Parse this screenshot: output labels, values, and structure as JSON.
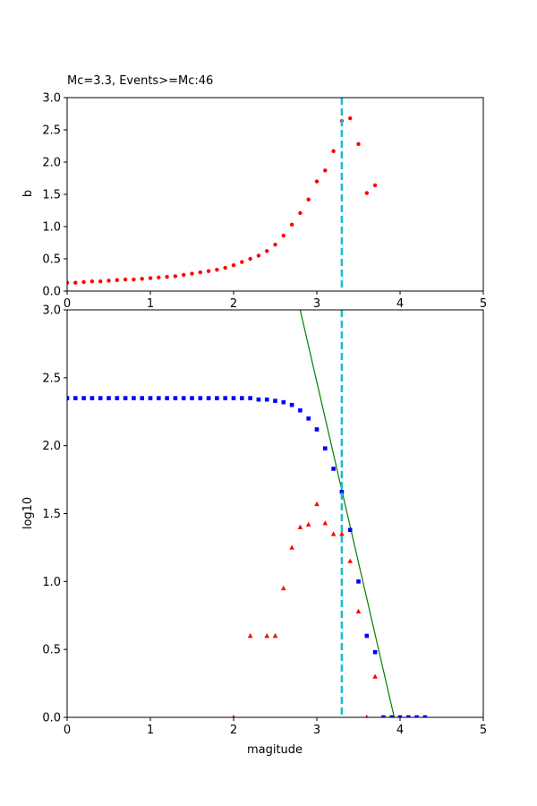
{
  "chart_data": [
    {
      "type": "scatter",
      "title": "Mc=3.3, Events>=Mc:46",
      "xlabel": "",
      "ylabel": "b",
      "xlim": [
        0,
        5
      ],
      "ylim": [
        0,
        3.0
      ],
      "xticks": [
        "0",
        "1",
        "2",
        "3",
        "4",
        "5"
      ],
      "yticks": [
        "0.0",
        "0.5",
        "1.0",
        "1.5",
        "2.0",
        "2.5",
        "3.0"
      ],
      "mc_line": {
        "x": 3.3,
        "color": "#17becf"
      },
      "series": [
        {
          "marker": "circle",
          "color": "#ff0000",
          "x": [
            0.0,
            0.1,
            0.2,
            0.3,
            0.4,
            0.5,
            0.6,
            0.7,
            0.8,
            0.9,
            1.0,
            1.1,
            1.2,
            1.3,
            1.4,
            1.5,
            1.6,
            1.7,
            1.8,
            1.9,
            2.0,
            2.1,
            2.2,
            2.3,
            2.4,
            2.5,
            2.6,
            2.7,
            2.8,
            2.9,
            3.0,
            3.1,
            3.2,
            3.3,
            3.4,
            3.5,
            3.6,
            3.7
          ],
          "y": [
            0.13,
            0.13,
            0.14,
            0.15,
            0.15,
            0.16,
            0.17,
            0.18,
            0.18,
            0.19,
            0.2,
            0.21,
            0.22,
            0.23,
            0.25,
            0.27,
            0.29,
            0.31,
            0.33,
            0.36,
            0.4,
            0.45,
            0.5,
            0.55,
            0.62,
            0.72,
            0.86,
            1.03,
            1.21,
            1.42,
            1.7,
            1.87,
            2.17,
            2.64,
            2.68,
            2.28,
            1.52,
            1.64
          ]
        }
      ]
    },
    {
      "type": "scatter",
      "title": "",
      "xlabel": "magitude",
      "ylabel": "log10",
      "xlim": [
        0,
        5
      ],
      "ylim": [
        0,
        3.0
      ],
      "xticks": [
        "0",
        "1",
        "2",
        "3",
        "4",
        "5"
      ],
      "yticks": [
        "0.0",
        "0.5",
        "1.0",
        "1.5",
        "2.0",
        "2.5",
        "3.0"
      ],
      "mc_line": {
        "x": 3.3,
        "color": "#17becf"
      },
      "fit_line": {
        "x": [
          2.8,
          3.93
        ],
        "y": [
          3.0,
          0.0
        ],
        "color": "#008000"
      },
      "series": [
        {
          "marker": "square",
          "color": "#0000ff",
          "x": [
            0.0,
            0.1,
            0.2,
            0.3,
            0.4,
            0.5,
            0.6,
            0.7,
            0.8,
            0.9,
            1.0,
            1.1,
            1.2,
            1.3,
            1.4,
            1.5,
            1.6,
            1.7,
            1.8,
            1.9,
            2.0,
            2.1,
            2.2,
            2.3,
            2.4,
            2.5,
            2.6,
            2.7,
            2.8,
            2.9,
            3.0,
            3.1,
            3.2,
            3.3,
            3.4,
            3.5,
            3.6,
            3.7,
            3.8,
            3.9,
            4.0,
            4.1,
            4.2,
            4.3
          ],
          "y": [
            2.35,
            2.35,
            2.35,
            2.35,
            2.35,
            2.35,
            2.35,
            2.35,
            2.35,
            2.35,
            2.35,
            2.35,
            2.35,
            2.35,
            2.35,
            2.35,
            2.35,
            2.35,
            2.35,
            2.35,
            2.35,
            2.35,
            2.35,
            2.34,
            2.34,
            2.33,
            2.32,
            2.3,
            2.26,
            2.2,
            2.12,
            1.98,
            1.83,
            1.66,
            1.38,
            1.0,
            0.6,
            0.48,
            0.0,
            0.0,
            0.0,
            0.0,
            0.0,
            0.0
          ]
        },
        {
          "marker": "triangle",
          "color": "#ff0000",
          "x": [
            2.0,
            2.2,
            2.4,
            2.5,
            2.6,
            2.7,
            2.8,
            2.9,
            3.0,
            3.1,
            3.2,
            3.3,
            3.4,
            3.5,
            3.6,
            3.7
          ],
          "y": [
            0.0,
            0.6,
            0.6,
            0.6,
            0.95,
            1.25,
            1.4,
            1.42,
            1.57,
            1.43,
            1.35,
            1.35,
            1.15,
            0.78,
            0.0,
            0.3
          ]
        }
      ]
    }
  ]
}
